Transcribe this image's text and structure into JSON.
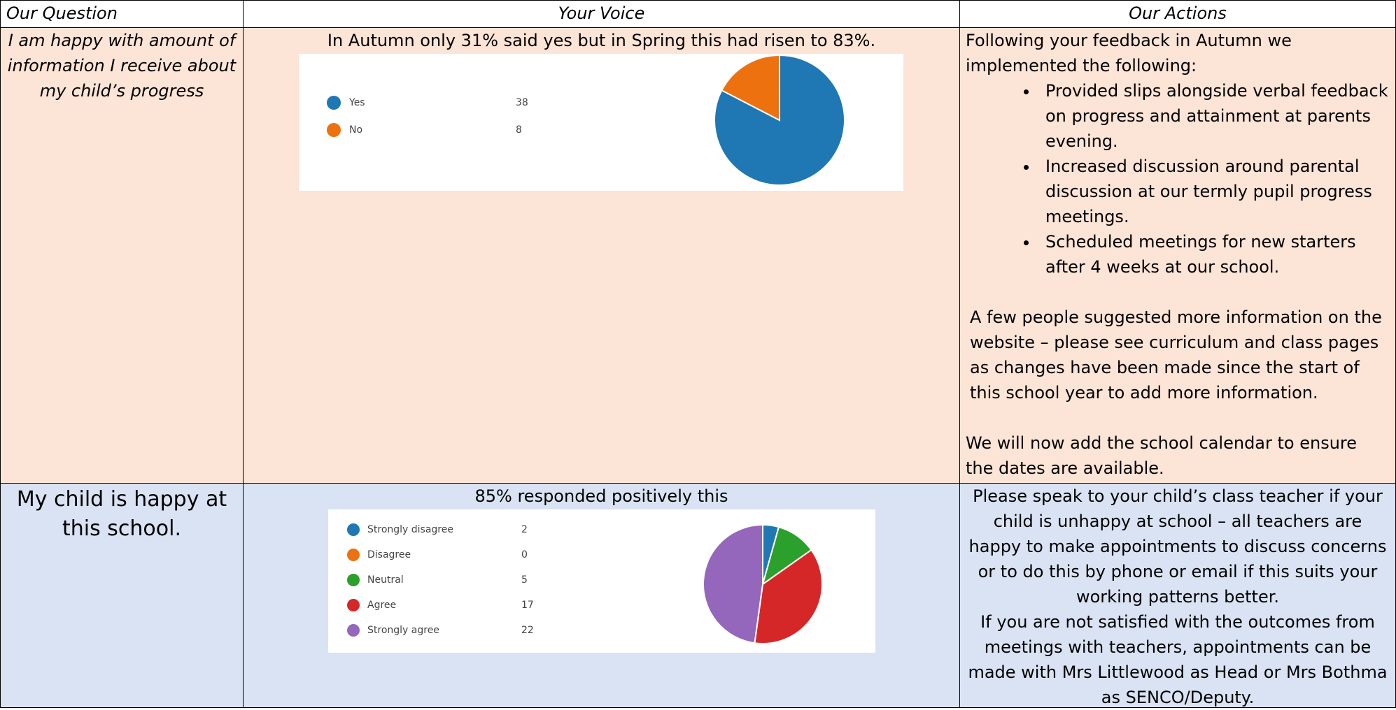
{
  "table": {
    "headers": [
      "Our Question",
      "Your Voice",
      "Our Actions"
    ],
    "rows": [
      {
        "question": "I am happy with amount of information I receive about my child’s progress",
        "voice": "In Autumn only 31% said yes but in Spring this had risen to 83%.",
        "chart": {
          "type": "pie",
          "categories": [
            "Yes",
            "No"
          ],
          "values": [
            38,
            8
          ],
          "colors": [
            "#1f77b4",
            "#ee7110"
          ]
        },
        "actions": {
          "intro": "Following your feedback in Autumn we implemented the following:",
          "bullets": [
            "Provided slips alongside verbal feedback on progress and attainment at parents evening.",
            "Increased discussion around parental discussion at our termly pupil progress meetings.",
            "Scheduled meetings for new starters after 4 weeks at our school."
          ],
          "paragraphs": [
            "A few people suggested more information on the website – please see curriculum and class pages as changes have been made since the start of this school year to add more information.",
            "We will now add the school calendar to ensure the dates are available."
          ]
        }
      },
      {
        "question": "My child is happy at this school.",
        "voice": "85% responded positively this",
        "chart": {
          "type": "pie",
          "categories": [
            "Strongly disagree",
            "Disagree",
            "Neutral",
            "Agree",
            "Strongly agree"
          ],
          "values": [
            2,
            0,
            5,
            17,
            22
          ],
          "colors": [
            "#1f77b4",
            "#ee7110",
            "#2ca02c",
            "#d62728",
            "#9467bd"
          ]
        },
        "actions": {
          "paragraphs": [
            "Please speak to your child’s class teacher if your child is unhappy at school – all teachers are happy to make appointments to discuss concerns or to do this by phone or email if this suits your working patterns better.",
            "If you are not satisfied with the outcomes from meetings with teachers, appointments can be made with Mrs Littlewood as Head or Mrs Bothma as SENCO/Deputy."
          ]
        }
      }
    ]
  }
}
